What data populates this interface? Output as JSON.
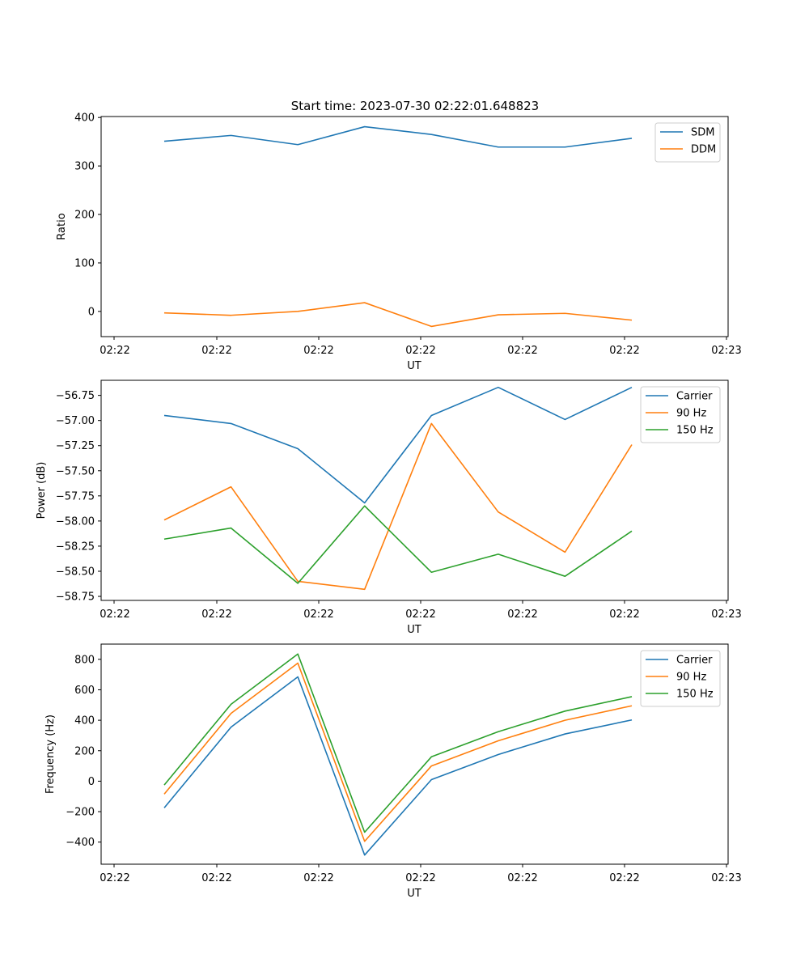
{
  "figure_title": "Start time: 2023-07-30 02:22:01.648823",
  "chart_data": [
    {
      "type": "line",
      "title": "Start time: 2023-07-30 02:22:01.648823",
      "xlabel": "UT",
      "ylabel": "Ratio",
      "xlim": [
        -0.75,
        8.5
      ],
      "ylim": [
        -52,
        402
      ],
      "yticks": [
        0,
        100,
        200,
        300,
        400
      ],
      "ytick_labels": [
        "0",
        "100",
        "200",
        "300",
        "400"
      ],
      "xticks": [
        0,
        1.5,
        3,
        4.5,
        6,
        7.5
      ],
      "xtick_labels": [
        "02:22",
        "02:22",
        "02:22",
        "02:22",
        "02:22",
        "02:22",
        "02:22",
        "02:23"
      ],
      "xtick_positions": [
        -0.75,
        0.75,
        2.25,
        3.75,
        5.25,
        6.75,
        8.25,
        9.75
      ],
      "x": [
        0,
        1,
        2,
        3,
        4,
        5,
        6,
        7
      ],
      "legend_location": "top-right",
      "series": [
        {
          "name": "SDM",
          "color": "#1f77b4",
          "values": [
            351,
            363,
            344,
            381,
            365,
            339,
            339,
            357
          ]
        },
        {
          "name": "DDM",
          "color": "#ff7f0e",
          "values": [
            -3,
            -8,
            0,
            18,
            -31,
            -7,
            -4,
            -18
          ]
        }
      ]
    },
    {
      "type": "line",
      "title": "",
      "xlabel": "UT",
      "ylabel": "Power (dB)",
      "ylim": [
        -58.79,
        -56.6
      ],
      "yticks": [
        -58.75,
        -58.5,
        -58.25,
        -58.0,
        -57.75,
        -57.5,
        -57.25,
        -57.0,
        -56.75
      ],
      "ytick_labels": [
        "−58.75",
        "−58.50",
        "−58.25",
        "−58.00",
        "−57.75",
        "−57.50",
        "−57.25",
        "−57.00",
        "−56.75"
      ],
      "xtick_labels": [
        "02:22",
        "02:22",
        "02:22",
        "02:22",
        "02:22",
        "02:22",
        "02:22",
        "02:23"
      ],
      "x": [
        0,
        1,
        2,
        3,
        4,
        5,
        6,
        7
      ],
      "legend_location": "top-right",
      "series": [
        {
          "name": "Carrier",
          "color": "#1f77b4",
          "values": [
            -56.95,
            -57.03,
            -57.28,
            -57.82,
            -56.95,
            -56.67,
            -56.99,
            -56.67
          ]
        },
        {
          "name": "90 Hz",
          "color": "#ff7f0e",
          "values": [
            -57.99,
            -57.66,
            -58.6,
            -58.68,
            -57.03,
            -57.91,
            -58.31,
            -57.24
          ]
        },
        {
          "name": "150 Hz",
          "color": "#2ca02c",
          "values": [
            -58.18,
            -58.07,
            -58.62,
            -57.85,
            -58.51,
            -58.33,
            -58.55,
            -58.1
          ]
        }
      ]
    },
    {
      "type": "line",
      "title": "",
      "xlabel": "UT",
      "ylabel": "Frequency (Hz)",
      "ylim": [
        -545,
        900
      ],
      "yticks": [
        -400,
        -200,
        0,
        200,
        400,
        600,
        800
      ],
      "ytick_labels": [
        "−400",
        "−200",
        "0",
        "200",
        "400",
        "600",
        "800"
      ],
      "xtick_labels": [
        "02:22",
        "02:22",
        "02:22",
        "02:22",
        "02:22",
        "02:22",
        "02:22",
        "02:23"
      ],
      "x": [
        0,
        1,
        2,
        3,
        4,
        5,
        6,
        7
      ],
      "legend_location": "top-right",
      "series": [
        {
          "name": "Carrier",
          "color": "#1f77b4",
          "values": [
            -175,
            355,
            685,
            -485,
            10,
            175,
            310,
            402
          ]
        },
        {
          "name": "90 Hz",
          "color": "#ff7f0e",
          "values": [
            -85,
            445,
            775,
            -395,
            100,
            265,
            400,
            495
          ]
        },
        {
          "name": "150 Hz",
          "color": "#2ca02c",
          "values": [
            -25,
            505,
            835,
            -335,
            160,
            325,
            460,
            555
          ]
        }
      ]
    }
  ]
}
